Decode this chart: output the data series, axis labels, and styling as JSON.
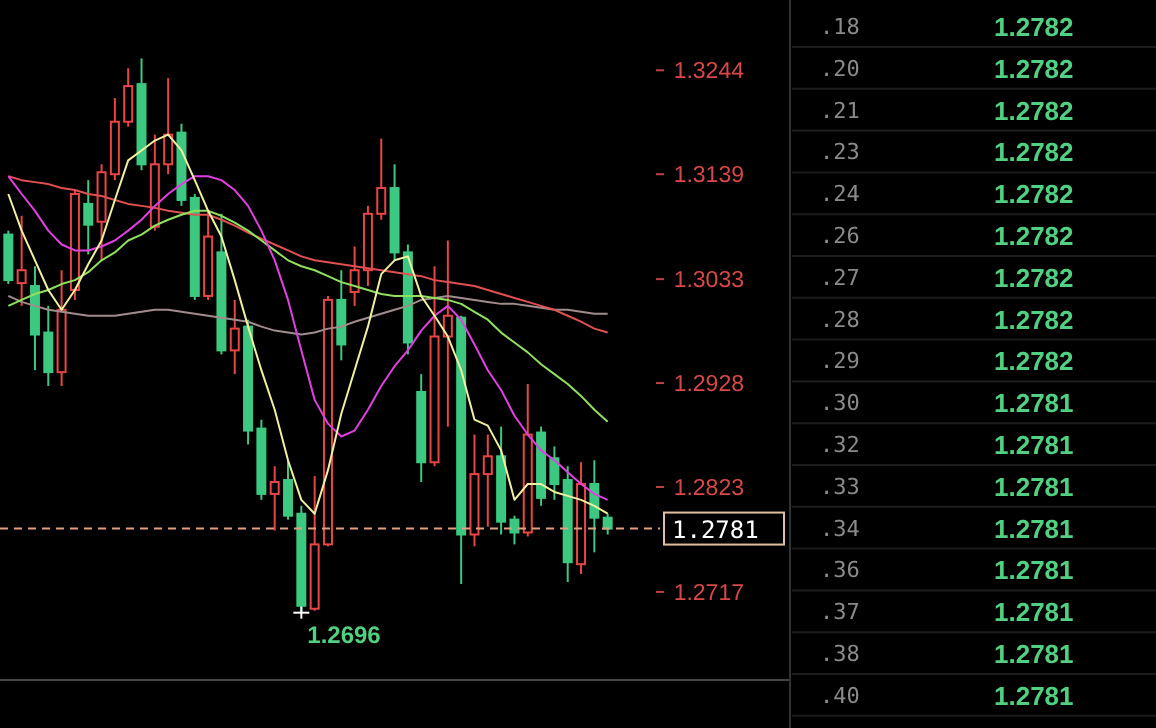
{
  "chart_data": [
    {
      "type": "candlestick",
      "categories": [
        null,
        null,
        null,
        null,
        null,
        null,
        null,
        null,
        null,
        null,
        null,
        null,
        null,
        null,
        null,
        null,
        null,
        null,
        null,
        null,
        null,
        null,
        null,
        null,
        null,
        null,
        null,
        null,
        null,
        null,
        null,
        null,
        null,
        null,
        null,
        null,
        null,
        null,
        null,
        null,
        null,
        null,
        null,
        null,
        null,
        null
      ],
      "ohlc": [
        [
          1.3078,
          1.3082,
          1.3028,
          1.3032
        ],
        [
          1.3029,
          1.3097,
          1.3006,
          1.3042
        ],
        [
          1.3026,
          1.3046,
          1.2941,
          1.2977
        ],
        [
          1.2979,
          1.3006,
          1.2925,
          1.2939
        ],
        [
          1.2939,
          1.3042,
          1.2925,
          1.3002
        ],
        [
          1.3022,
          1.3123,
          1.3012,
          1.3119
        ],
        [
          1.3109,
          1.3133,
          1.3058,
          1.3088
        ],
        [
          1.3091,
          1.3149,
          1.3052,
          1.3141
        ],
        [
          1.3139,
          1.3216,
          1.3133,
          1.3192
        ],
        [
          1.3192,
          1.3246,
          1.3187,
          1.3228
        ],
        [
          1.323,
          1.3256,
          1.3143,
          1.3149
        ],
        [
          1.3086,
          1.3179,
          1.3082,
          1.3149
        ],
        [
          1.3149,
          1.3236,
          1.3139,
          1.3179
        ],
        [
          1.3181,
          1.319,
          1.3107,
          1.3113
        ],
        [
          1.3115,
          1.3119,
          1.3012,
          1.3016
        ],
        [
          1.3016,
          1.3103,
          1.3012,
          1.3076
        ],
        [
          1.306,
          1.3099,
          1.2957,
          1.2961
        ],
        [
          1.2961,
          1.3012,
          1.2937,
          1.2983
        ],
        [
          1.2985,
          1.2992,
          1.2866,
          1.288
        ],
        [
          1.2882,
          1.2891,
          1.281,
          1.2816
        ],
        [
          1.2816,
          1.2844,
          1.2779,
          1.2828
        ],
        [
          1.283,
          1.285,
          1.279,
          1.2794
        ],
        [
          1.2796,
          1.2804,
          1.2696,
          1.2703
        ],
        [
          1.27,
          1.2834,
          1.2698,
          1.2765
        ],
        [
          1.2765,
          1.3016,
          1.2763,
          1.3012
        ],
        [
          1.3012,
          1.3042,
          1.2951,
          1.2967
        ],
        [
          1.302,
          1.3066,
          1.3006,
          1.3042
        ],
        [
          1.3042,
          1.3107,
          1.3026,
          1.3099
        ],
        [
          1.3099,
          1.3175,
          1.3093,
          1.3125
        ],
        [
          1.3125,
          1.3149,
          1.3052,
          1.306
        ],
        [
          1.306,
          1.3068,
          1.2957,
          1.2969
        ],
        [
          1.2919,
          1.2937,
          1.2828,
          1.2848
        ],
        [
          1.2848,
          1.3046,
          1.2844,
          1.2975
        ],
        [
          1.2975,
          1.3072,
          1.2884,
          1.2996
        ],
        [
          1.2994,
          1.2996,
          1.2725,
          1.2775
        ],
        [
          1.2775,
          1.2876,
          1.2763,
          1.2836
        ],
        [
          1.2836,
          1.2876,
          1.2783,
          1.2854
        ],
        [
          1.2854,
          1.2884,
          1.2775,
          1.2788
        ],
        [
          1.279,
          1.2794,
          1.2765,
          1.2777
        ],
        [
          1.2777,
          1.2927,
          1.2773,
          1.2876
        ],
        [
          1.2878,
          1.2884,
          1.2804,
          1.2812
        ],
        [
          1.2852,
          1.2864,
          1.281,
          1.2826
        ],
        [
          1.283,
          1.2844,
          1.2727,
          1.2747
        ],
        [
          1.2745,
          1.2848,
          1.2735,
          1.2826
        ],
        [
          1.2826,
          1.285,
          1.2757,
          1.2792
        ],
        [
          1.2792,
          1.2796,
          1.2775,
          1.2781
        ]
      ],
      "colors": [
        "#3cc881",
        "#e84545",
        "#3cc881",
        "#3cc881",
        "#e84545",
        "#e84545",
        "#3cc881",
        "#e84545",
        "#e84545",
        "#e84545",
        "#3cc881",
        "#e84545",
        "#e84545",
        "#3cc881",
        "#3cc881",
        "#e84545",
        "#3cc881",
        "#e84545",
        "#3cc881",
        "#3cc881",
        "#e84545",
        "#3cc881",
        "#3cc881",
        "#e84545",
        "#e84545",
        "#3cc881",
        "#e84545",
        "#e84545",
        "#e84545",
        "#3cc881",
        "#3cc881",
        "#3cc881",
        "#e84545",
        "#e84545",
        "#3cc881",
        "#e84545",
        "#e84545",
        "#3cc881",
        "#3cc881",
        "#e84545",
        "#3cc881",
        "#3cc881",
        "#3cc881",
        "#e84545",
        "#3cc881",
        "#3cc881"
      ],
      "series": [
        {
          "type": "line",
          "color": "#a08c8c",
          "values": [
            1.3016,
            1.301,
            1.3006,
            1.3002,
            1.3,
            1.2998,
            1.2996,
            1.2996,
            1.2996,
            1.2998,
            1.3,
            1.3002,
            1.3002,
            1.3,
            1.2998,
            1.2996,
            1.2994,
            1.2992,
            1.299,
            1.2985,
            1.2981,
            1.2979,
            1.2977,
            1.2979,
            1.2983,
            1.2985,
            1.299,
            1.2994,
            1.2998,
            1.3002,
            1.3006,
            1.3012,
            1.3014,
            1.3016,
            1.3014,
            1.3012,
            1.301,
            1.3008,
            1.3008,
            1.3006,
            1.3004,
            1.3002,
            1.3002,
            1.3,
            1.2998,
            1.2998
          ]
        },
        {
          "type": "line",
          "color": "#e05050",
          "values": [
            1.3137,
            1.3133,
            1.3131,
            1.3129,
            1.3125,
            1.3123,
            1.3119,
            1.3117,
            1.3113,
            1.3109,
            1.3107,
            1.3105,
            1.3102,
            1.31,
            1.3098,
            1.3098,
            1.3093,
            1.3087,
            1.308,
            1.3074,
            1.3068,
            1.3062,
            1.3056,
            1.3052,
            1.305,
            1.3048,
            1.3046,
            1.3044,
            1.3042,
            1.304,
            1.3038,
            1.3036,
            1.3032,
            1.303,
            1.3028,
            1.3026,
            1.3022,
            1.3018,
            1.3014,
            1.301,
            1.3006,
            1.3002,
            1.2996,
            1.299,
            1.2983,
            1.2979
          ]
        },
        {
          "type": "line",
          "color": "#90e060",
          "values": [
            1.3006,
            1.3012,
            1.3018,
            1.3022,
            1.3028,
            1.3032,
            1.304,
            1.3052,
            1.306,
            1.3072,
            1.3078,
            1.3087,
            1.3093,
            1.3098,
            1.3102,
            1.3102,
            1.3097,
            1.309,
            1.3082,
            1.3072,
            1.3062,
            1.3052,
            1.3046,
            1.3042,
            1.3036,
            1.303,
            1.3026,
            1.3022,
            1.3018,
            1.3016,
            1.3016,
            1.3016,
            1.3014,
            1.3012,
            1.3008,
            1.3,
            1.2992,
            1.2979,
            1.2969,
            1.2959,
            1.2947,
            1.2937,
            1.2927,
            1.2915,
            1.2901,
            1.2889
          ]
        },
        {
          "type": "line",
          "color": "#e040e0",
          "values": [
            1.3137,
            1.3119,
            1.3102,
            1.3082,
            1.3068,
            1.3062,
            1.3062,
            1.3066,
            1.3072,
            1.3082,
            1.3093,
            1.3107,
            1.3119,
            1.3129,
            1.3137,
            1.3137,
            1.3133,
            1.3123,
            1.3107,
            1.3082,
            1.3052,
            1.3012,
            1.2961,
            1.2911,
            1.2887,
            1.2874,
            1.288,
            1.2901,
            1.2925,
            1.2945,
            1.2961,
            1.2981,
            1.2996,
            1.3006,
            1.2992,
            1.2967,
            1.2941,
            1.2921,
            1.2895,
            1.2876,
            1.286,
            1.285,
            1.2838,
            1.2826,
            1.2816,
            1.281
          ]
        },
        {
          "type": "line",
          "color": "#f0f0a0",
          "values": [
            1.3119,
            1.3082,
            1.3052,
            1.3022,
            1.3002,
            1.3022,
            1.3048,
            1.3072,
            1.3113,
            1.3153,
            1.3163,
            1.3173,
            1.3179,
            1.3163,
            1.3133,
            1.3102,
            1.3076,
            1.3032,
            1.2985,
            1.2941,
            1.2901,
            1.285,
            1.281,
            1.2796,
            1.284,
            1.2897,
            1.2941,
            1.2985,
            1.3038,
            1.3052,
            1.3056,
            1.3016,
            1.2996,
            1.2975,
            1.2941,
            1.2891,
            1.2885,
            1.286,
            1.281,
            1.2826,
            1.2826,
            1.2818,
            1.2814,
            1.281,
            1.2804,
            1.2796
          ]
        }
      ],
      "ylim": [
        1.2628,
        1.3315
      ],
      "yticks": [
        1.3244,
        1.3139,
        1.3033,
        1.2928,
        1.2823,
        1.2717
      ],
      "ref_lines": [
        {
          "axis": "y",
          "value": 1.2781,
          "label": "1.2781",
          "color": "#e0a080",
          "line_style": "dashed"
        }
      ],
      "annotations": [
        "1.2696"
      ]
    },
    {
      "type": "other",
      "categories": [
        ".18",
        ".20",
        ".21",
        ".23",
        ".24",
        ".26",
        ".27",
        ".28",
        ".29",
        ".30",
        ".32",
        ".33",
        ".34",
        ".36",
        ".37",
        ".38",
        ".40"
      ],
      "values": [
        1.2782,
        1.2782,
        1.2782,
        1.2782,
        1.2782,
        1.2782,
        1.2782,
        1.2782,
        1.2782,
        1.2781,
        1.2781,
        1.2781,
        1.2781,
        1.2781,
        1.2781,
        1.2781,
        1.2781
      ],
      "data_labels": true
    }
  ]
}
